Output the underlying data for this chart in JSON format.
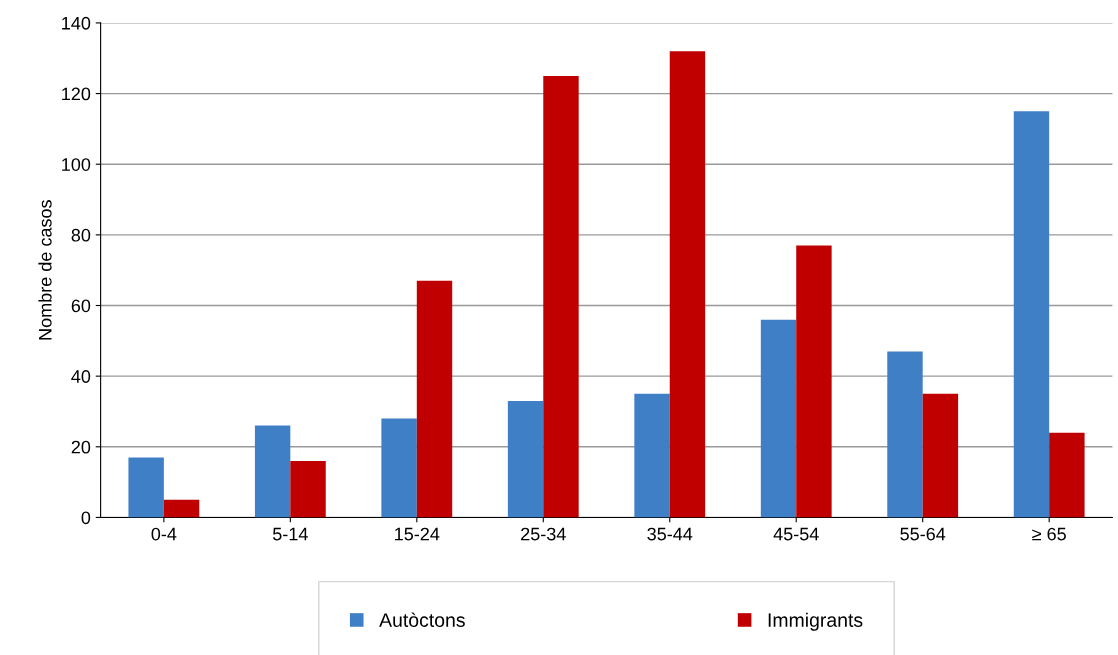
{
  "chart_data": {
    "type": "bar",
    "ylabel": "Nombre de casos",
    "categories": [
      "0-4",
      "5-14",
      "15-24",
      "25-34",
      "35-44",
      "45-54",
      "55-64",
      "≥ 65"
    ],
    "series": [
      {
        "name": "Autòctons",
        "color": "#3f7fc6",
        "values": [
          17,
          26,
          28,
          33,
          35,
          56,
          47,
          115
        ]
      },
      {
        "name": "Immigrants",
        "color": "#c00000",
        "values": [
          5,
          16,
          67,
          125,
          132,
          77,
          35,
          24
        ]
      }
    ],
    "ylim": [
      0,
      140
    ],
    "yticks": [
      0,
      20,
      40,
      60,
      80,
      100,
      120,
      140
    ],
    "grid": "y",
    "legend": "bottom"
  }
}
